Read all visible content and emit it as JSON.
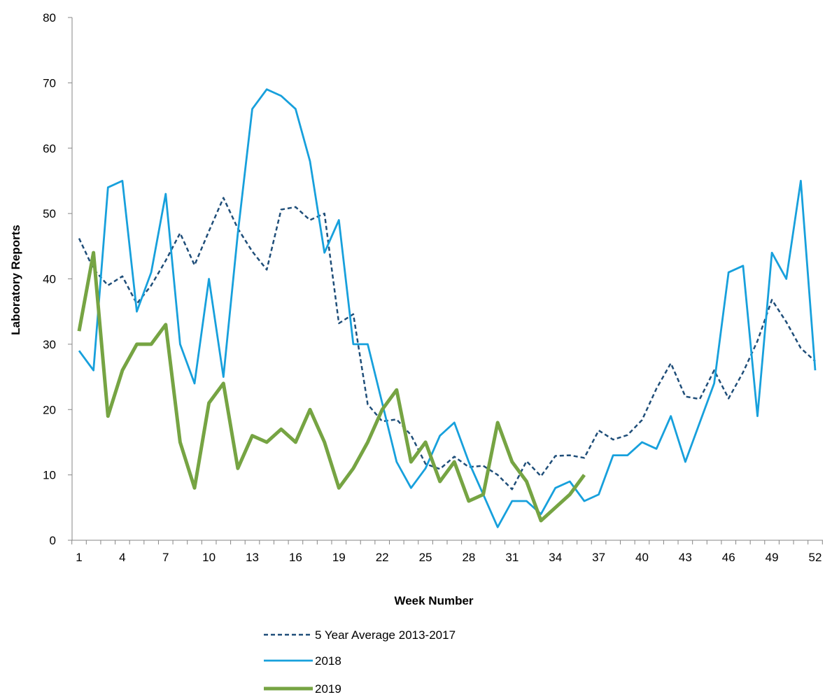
{
  "chart_data": {
    "type": "line",
    "title": "",
    "xlabel": "Week Number",
    "ylabel": "Laboratory Reports",
    "xlim": [
      1,
      52
    ],
    "ylim": [
      0,
      80
    ],
    "yticks": [
      0,
      10,
      20,
      30,
      40,
      50,
      60,
      70,
      80
    ],
    "xtick_labels": [
      "1",
      "4",
      "7",
      "10",
      "13",
      "16",
      "19",
      "22",
      "25",
      "28",
      "31",
      "34",
      "37",
      "40",
      "43",
      "46",
      "49",
      "52"
    ],
    "grid": false,
    "legend_position": "bottom",
    "series": [
      {
        "name": "5 Year Average 2013-2017",
        "color": "#1F4E79",
        "style": "dashed",
        "x": [
          1,
          2,
          3,
          4,
          5,
          6,
          7,
          8,
          9,
          10,
          11,
          12,
          13,
          14,
          15,
          16,
          17,
          18,
          19,
          20,
          21,
          22,
          23,
          24,
          25,
          26,
          27,
          28,
          29,
          30,
          31,
          32,
          33,
          34,
          35,
          36,
          37,
          38,
          39,
          40,
          41,
          42,
          43,
          44,
          45,
          46,
          47,
          48,
          49,
          50,
          51,
          52
        ],
        "values": [
          46.2,
          41.5,
          39.0,
          40.4,
          36.2,
          39.0,
          42.8,
          47.0,
          42.1,
          47.3,
          52.4,
          47.7,
          44.2,
          41.4,
          50.6,
          51.0,
          49.0,
          50.0,
          33.2,
          34.6,
          20.8,
          18.2,
          18.5,
          16.1,
          11.7,
          10.9,
          12.8,
          11.2,
          11.4,
          10.0,
          7.8,
          12.1,
          9.8,
          12.9,
          13.0,
          12.6,
          16.8,
          15.4,
          16.1,
          18.4,
          23.2,
          27.1,
          22.0,
          21.6,
          26.0,
          21.7,
          25.7,
          30.5,
          36.8,
          33.4,
          29.4,
          27.4
        ]
      },
      {
        "name": "2018",
        "color": "#17A0DC",
        "style": "solid",
        "x": [
          1,
          2,
          3,
          4,
          5,
          6,
          7,
          8,
          9,
          10,
          11,
          12,
          13,
          14,
          15,
          16,
          17,
          18,
          19,
          20,
          21,
          22,
          23,
          24,
          25,
          26,
          27,
          28,
          29,
          30,
          31,
          32,
          33,
          34,
          35,
          36,
          37,
          38,
          39,
          40,
          41,
          42,
          43,
          44,
          45,
          46,
          47,
          48,
          49,
          50,
          51,
          52
        ],
        "values": [
          29,
          26,
          54,
          55,
          35,
          41,
          53,
          30,
          24,
          40,
          25,
          47,
          66,
          69,
          68,
          66,
          58,
          44,
          49,
          30,
          30,
          21,
          12,
          8,
          11,
          16,
          18,
          12,
          7,
          2,
          6,
          6,
          4,
          8,
          9,
          6,
          7,
          13,
          13,
          15,
          14,
          19,
          12,
          18,
          24,
          41,
          42,
          19,
          44,
          40,
          55,
          26
        ]
      },
      {
        "name": "2019",
        "color": "#76A443",
        "style": "solid",
        "x": [
          1,
          2,
          3,
          4,
          5,
          6,
          7,
          8,
          9,
          10,
          11,
          12,
          13,
          14,
          15,
          16,
          17,
          18,
          19,
          20,
          21,
          22,
          23,
          24,
          25,
          26,
          27,
          28,
          29,
          30,
          31,
          32,
          33,
          34,
          35,
          36
        ],
        "values": [
          32,
          44,
          19,
          26,
          30,
          30,
          33,
          15,
          8,
          21,
          24,
          11,
          16,
          15,
          17,
          15,
          20,
          15,
          8,
          11,
          15,
          20,
          23,
          12,
          15,
          9,
          12,
          6,
          7,
          18,
          12,
          9,
          3,
          5,
          7,
          10
        ]
      }
    ]
  }
}
